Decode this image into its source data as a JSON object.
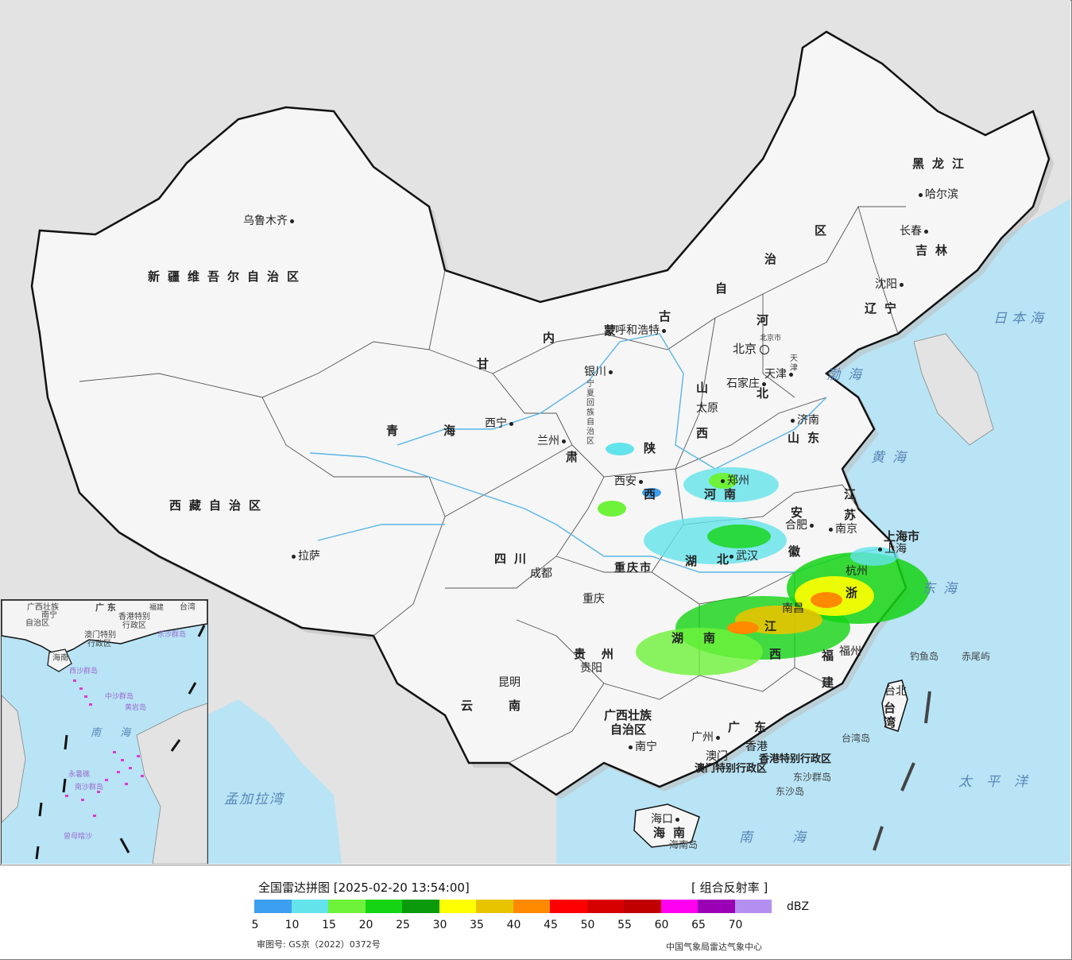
{
  "map": {
    "provinces": [
      {
        "id": "xinjiang",
        "text": "新疆维吾尔自治区"
      },
      {
        "id": "xizang",
        "text": "西藏自治区"
      },
      {
        "id": "qinghai-1",
        "text": "青"
      },
      {
        "id": "qinghai-2",
        "text": "海"
      },
      {
        "id": "gansu-1",
        "text": "甘"
      },
      {
        "id": "gansu-2",
        "text": "肃"
      },
      {
        "id": "neimenggu-1",
        "text": "内"
      },
      {
        "id": "neimenggu-2",
        "text": "蒙"
      },
      {
        "id": "neimenggu-3",
        "text": "古"
      },
      {
        "id": "neimenggu-4",
        "text": "自"
      },
      {
        "id": "neimenggu-5",
        "text": "治"
      },
      {
        "id": "neimenggu-6",
        "text": "区"
      },
      {
        "id": "heilongjiang",
        "text": "黑龙江"
      },
      {
        "id": "jilin",
        "text": "吉林"
      },
      {
        "id": "liaoning",
        "text": "辽宁"
      },
      {
        "id": "hebei-1",
        "text": "河"
      },
      {
        "id": "hebei-2",
        "text": "北"
      },
      {
        "id": "shanxi-1",
        "text": "山"
      },
      {
        "id": "shanxi-2",
        "text": "西"
      },
      {
        "id": "shandong",
        "text": "山东"
      },
      {
        "id": "henan",
        "text": "河南"
      },
      {
        "id": "shaanxi",
        "text": "陕"
      },
      {
        "id": "shaanxi-2",
        "text": "西"
      },
      {
        "id": "jiangsu-1",
        "text": "江"
      },
      {
        "id": "jiangsu-2",
        "text": "苏"
      },
      {
        "id": "anhui-1",
        "text": "安"
      },
      {
        "id": "anhui-2",
        "text": "徽"
      },
      {
        "id": "hubei-1",
        "text": "湖"
      },
      {
        "id": "hubei-2",
        "text": "北"
      },
      {
        "id": "sichuan",
        "text": "四川"
      },
      {
        "id": "chongqing",
        "text": "重庆市"
      },
      {
        "id": "zhejiang",
        "text": "浙"
      },
      {
        "id": "jiangxi",
        "text": "江"
      },
      {
        "id": "jiangxi-2",
        "text": "西"
      },
      {
        "id": "hunan-1",
        "text": "湖"
      },
      {
        "id": "hunan-2",
        "text": "南"
      },
      {
        "id": "guizhou",
        "text": "贵州"
      },
      {
        "id": "yunnan",
        "text": "云南"
      },
      {
        "id": "guangxi-1",
        "text": "广西壮族"
      },
      {
        "id": "guangxi-2",
        "text": "自治区"
      },
      {
        "id": "guangdong",
        "text": "广东"
      },
      {
        "id": "fujian-1",
        "text": "福"
      },
      {
        "id": "fujian-2",
        "text": "建"
      },
      {
        "id": "taiwan",
        "text": "台湾"
      },
      {
        "id": "hainan",
        "text": "海南"
      },
      {
        "id": "shanghai",
        "text": "上海市"
      },
      {
        "id": "tianjin",
        "text": "天津"
      },
      {
        "id": "ningxia",
        "text": "宁夏回族自治区"
      },
      {
        "id": "hk",
        "text": "香港特别行政区"
      },
      {
        "id": "macau",
        "text": "澳门特别行政区"
      }
    ],
    "cities": [
      {
        "id": "urumqi",
        "text": "乌鲁木齐"
      },
      {
        "id": "lhasa",
        "text": "拉萨"
      },
      {
        "id": "xining",
        "text": "西宁"
      },
      {
        "id": "lanzhou",
        "text": "兰州"
      },
      {
        "id": "yinchuan",
        "text": "银川"
      },
      {
        "id": "huhehaote",
        "text": "呼和浩特"
      },
      {
        "id": "harbin",
        "text": "哈尔滨"
      },
      {
        "id": "changchun",
        "text": "长春"
      },
      {
        "id": "shenyang",
        "text": "沈阳"
      },
      {
        "id": "beijing",
        "text": "北京"
      },
      {
        "id": "shijiazhuang",
        "text": "石家庄"
      },
      {
        "id": "taiyuan",
        "text": "太原"
      },
      {
        "id": "jinan",
        "text": "济南"
      },
      {
        "id": "zhengzhou",
        "text": "郑州"
      },
      {
        "id": "xian",
        "text": "西安"
      },
      {
        "id": "hefei",
        "text": "合肥"
      },
      {
        "id": "nanjing",
        "text": "南京"
      },
      {
        "id": "shanghai-city",
        "text": "上海"
      },
      {
        "id": "wuhan",
        "text": "武汉"
      },
      {
        "id": "chengdu",
        "text": "成都"
      },
      {
        "id": "chongqing-city",
        "text": "重庆"
      },
      {
        "id": "hangzhou",
        "text": "杭州"
      },
      {
        "id": "nanchang",
        "text": "南昌"
      },
      {
        "id": "guiyang",
        "text": "贵阳"
      },
      {
        "id": "kunming",
        "text": "昆明"
      },
      {
        "id": "fuzhou",
        "text": "福州"
      },
      {
        "id": "taibei",
        "text": "台北"
      },
      {
        "id": "nanning",
        "text": "南宁"
      },
      {
        "id": "guangzhou",
        "text": "广州"
      },
      {
        "id": "hongkong",
        "text": "香港"
      },
      {
        "id": "macao",
        "text": "澳门"
      },
      {
        "id": "haikou",
        "text": "海口"
      },
      {
        "id": "tianjin-city",
        "text": "天津"
      }
    ],
    "seas": [
      {
        "id": "bohai",
        "text": "渤海"
      },
      {
        "id": "huanghai",
        "text": "黄海"
      },
      {
        "id": "donghai",
        "text": "东海"
      },
      {
        "id": "nanhai",
        "text": "南海"
      },
      {
        "id": "taipingyang",
        "text": "太平洋"
      },
      {
        "id": "ribenhai",
        "text": "日本海"
      },
      {
        "id": "mengjialawan",
        "text": "孟加拉湾"
      }
    ],
    "islands": [
      {
        "id": "diaoyudao",
        "text": "钓鱼岛"
      },
      {
        "id": "chiweiyu",
        "text": "赤尾屿"
      },
      {
        "id": "taiwandao",
        "text": "台湾岛"
      },
      {
        "id": "dongshaqundao",
        "text": "东沙群岛"
      },
      {
        "id": "dongshadao",
        "text": "东沙岛"
      },
      {
        "id": "hainandao",
        "text": "海南岛"
      },
      {
        "id": "beijingshi",
        "text": "北京市"
      }
    ],
    "inset_labels": [
      {
        "id": "i-guangxi",
        "text": "广西壮族"
      },
      {
        "id": "i-nanning",
        "text": "南宁"
      },
      {
        "id": "i-zizhiqu",
        "text": "自治区"
      },
      {
        "id": "i-guangdong",
        "text": "广 东"
      },
      {
        "id": "i-fujian",
        "text": "福建"
      },
      {
        "id": "i-taiwan",
        "text": "台湾"
      },
      {
        "id": "i-hk",
        "text": "香港特别"
      },
      {
        "id": "i-hk2",
        "text": "行政区"
      },
      {
        "id": "i-macau",
        "text": "澳门特别"
      },
      {
        "id": "i-macau2",
        "text": "行政区"
      },
      {
        "id": "i-dongsha",
        "text": "东沙群岛"
      },
      {
        "id": "i-hainan",
        "text": "海南"
      },
      {
        "id": "i-xisha",
        "text": "西沙群岛"
      },
      {
        "id": "i-zhongsha",
        "text": "中沙群岛"
      },
      {
        "id": "i-huangyan",
        "text": "黄岩岛"
      },
      {
        "id": "i-nanhai",
        "text": "南 海"
      },
      {
        "id": "i-nansha",
        "text": "南沙群岛"
      },
      {
        "id": "i-zengmu",
        "text": "曾母暗沙"
      },
      {
        "id": "i-yongshu",
        "text": "永暑礁"
      }
    ]
  },
  "legend": {
    "title": "全国雷达拼图 [2025-02-20 13:54:00]",
    "product": "[ 组合反射率 ]",
    "unit": "dBZ",
    "approval": "审图号: GS京（2022）0372号",
    "agency": "中国气象局雷达气象中心",
    "colors": [
      "#3d9ff0",
      "#63e3eb",
      "#6ef23a",
      "#14d414",
      "#0a9a0a",
      "#ffff00",
      "#e8c300",
      "#ff8a00",
      "#ff0000",
      "#d60000",
      "#c00000",
      "#ff00f0",
      "#9a00b4",
      "#b48ff0"
    ],
    "ticks": [
      "5",
      "10",
      "15",
      "20",
      "25",
      "30",
      "35",
      "40",
      "45",
      "50",
      "55",
      "60",
      "65",
      "70"
    ]
  }
}
